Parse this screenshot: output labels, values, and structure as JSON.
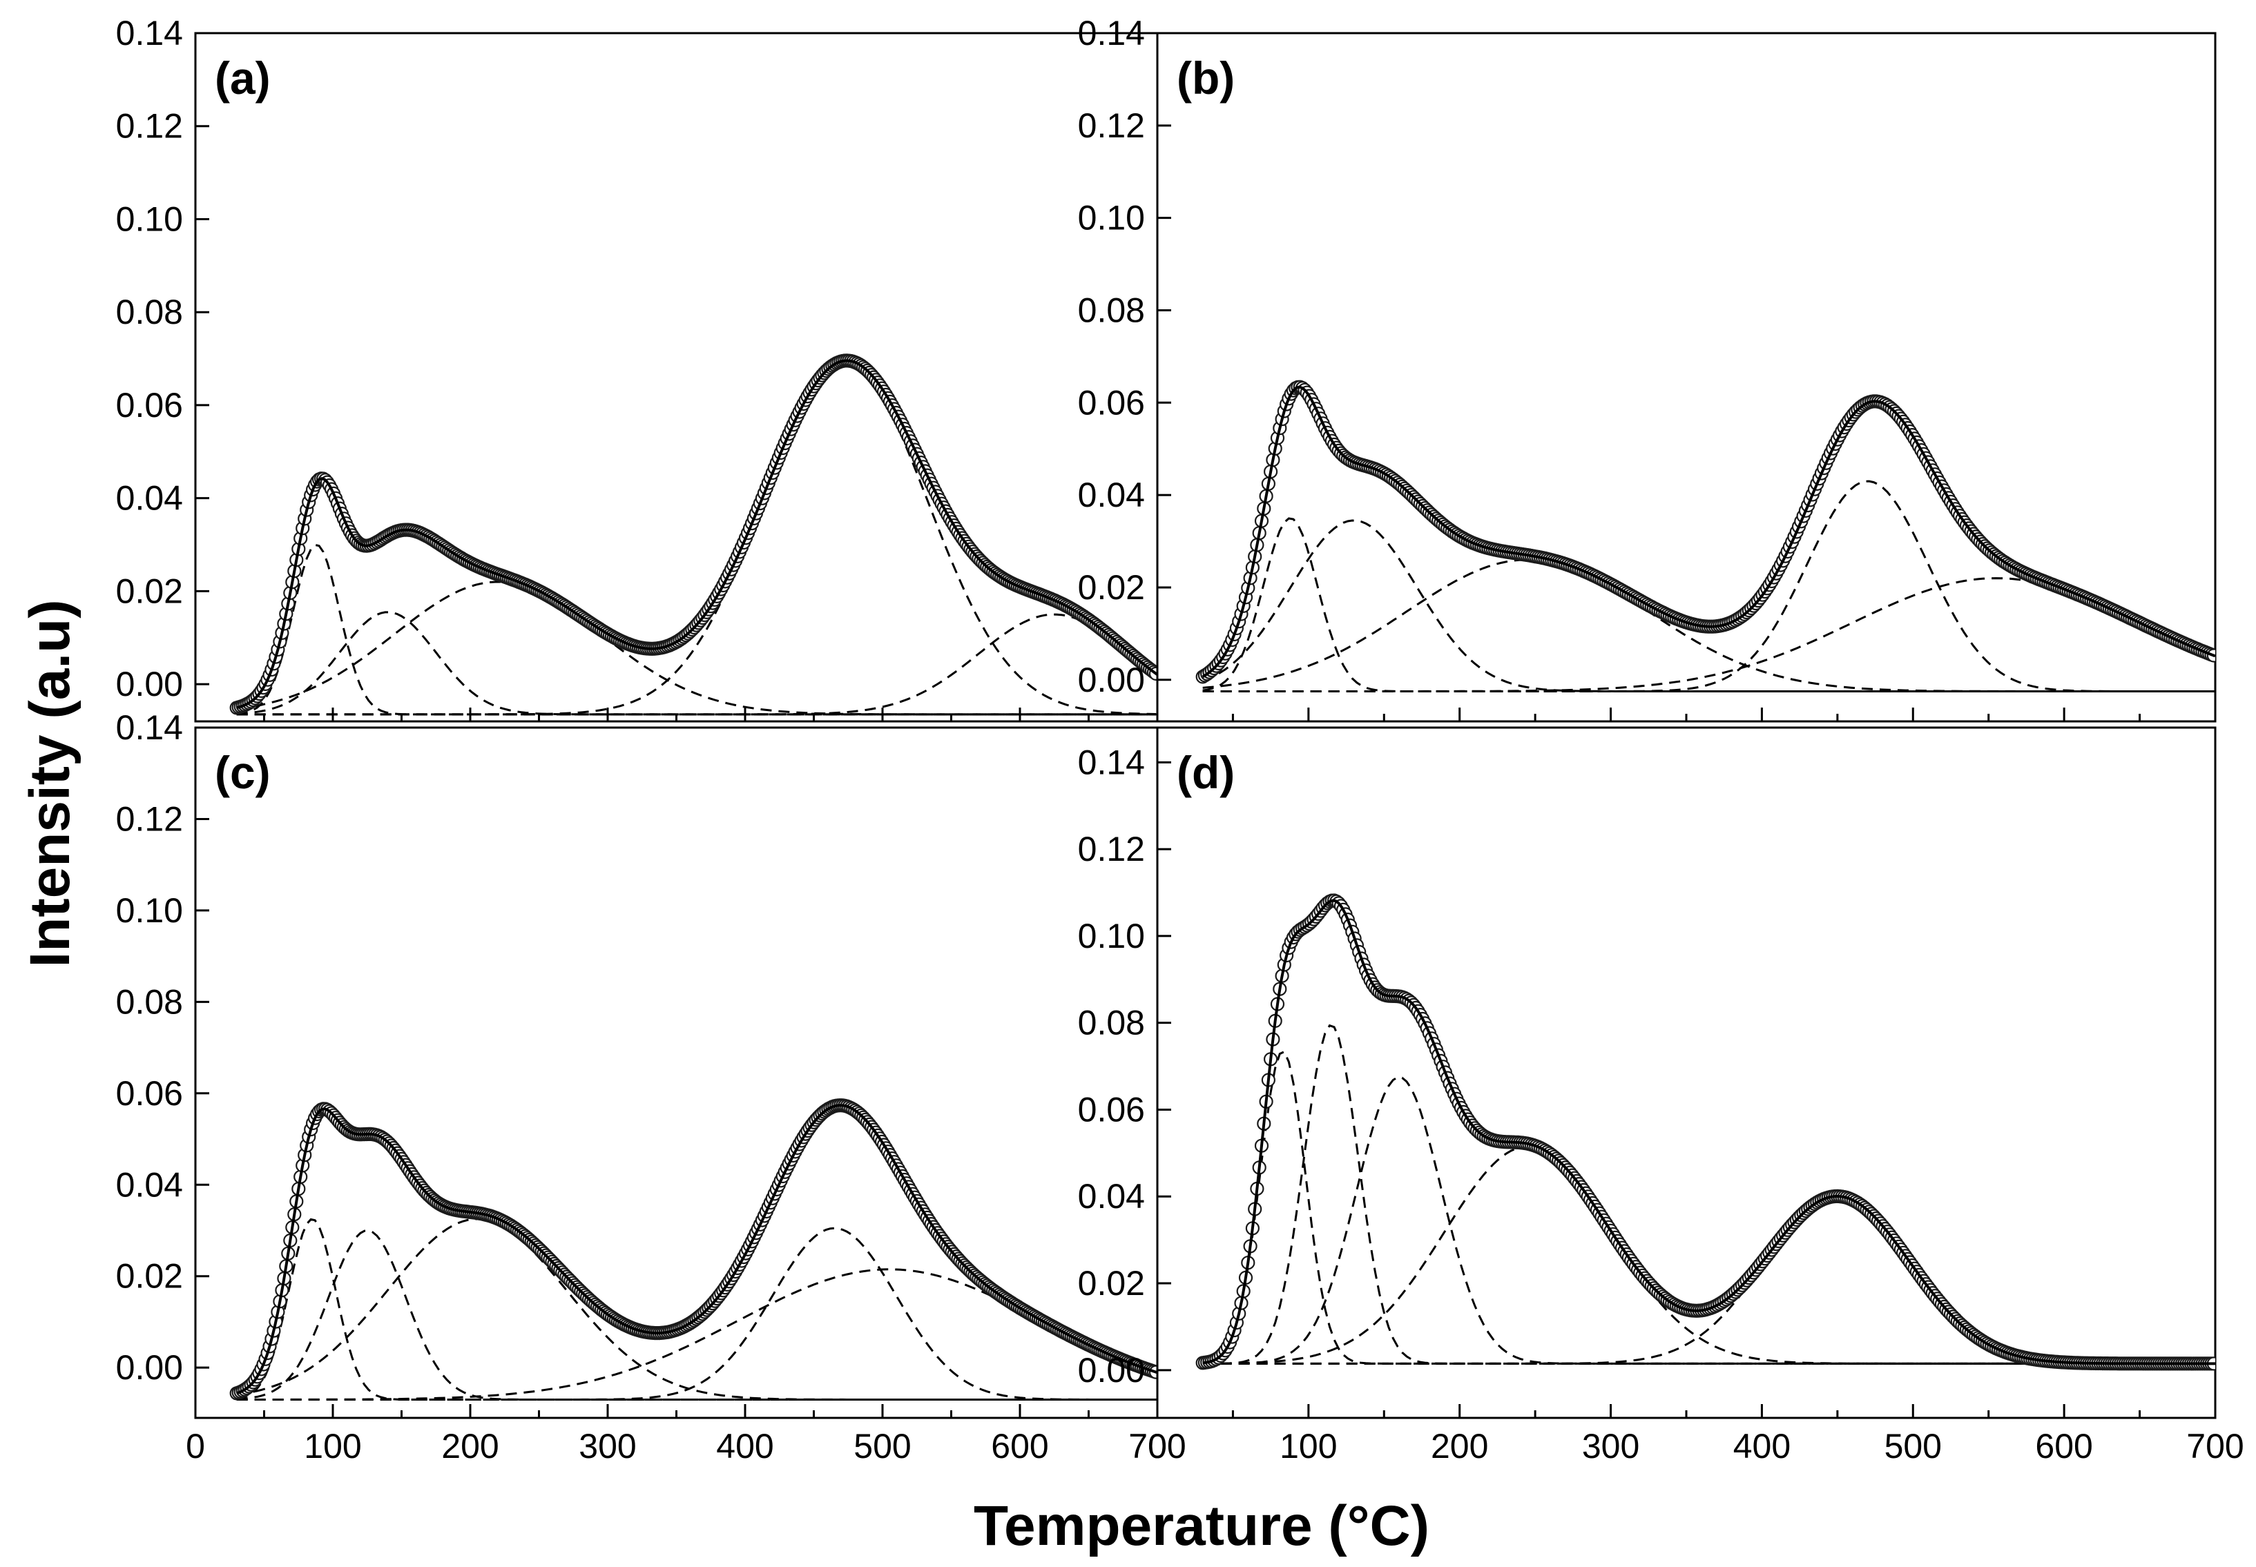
{
  "figure": {
    "xlabel": "Temperature (°C)",
    "ylabel": "Intensity (a.u)"
  },
  "chart_data": [
    {
      "panel": "(a)",
      "type": "line",
      "xlim": [
        0,
        700
      ],
      "ylim": [
        -0.008,
        0.14
      ],
      "xticks": [],
      "xtick_labels": [],
      "yticks": [
        0.0,
        0.02,
        0.04,
        0.06,
        0.08,
        0.1,
        0.12,
        0.14
      ],
      "ytick_labels": [
        "0.00",
        "0.02",
        "0.04",
        "0.06",
        "0.08",
        "0.10",
        "0.12",
        "0.14"
      ],
      "xstart": 30,
      "xend": 700,
      "baseline": -0.0065,
      "peaks": [
        {
          "center": 88,
          "amp": 0.0365,
          "sigma": 17
        },
        {
          "center": 140,
          "amp": 0.022,
          "sigma": 35
        },
        {
          "center": 220,
          "amp": 0.0285,
          "sigma": 75
        },
        {
          "center": 473,
          "amp": 0.0755,
          "sigma": 60
        },
        {
          "center": 625,
          "amp": 0.0215,
          "sigma": 55
        }
      ],
      "series": [
        {
          "name": "experimental",
          "style": "circles"
        },
        {
          "name": "fit",
          "style": "solid"
        },
        {
          "name": "components",
          "style": "dashed"
        }
      ]
    },
    {
      "panel": "(b)",
      "type": "line",
      "xlim": [
        0,
        700
      ],
      "ylim": [
        -0.009,
        0.14
      ],
      "xticks": [],
      "xtick_labels": [],
      "yticks": [
        0.0,
        0.02,
        0.04,
        0.06,
        0.08,
        0.1,
        0.12,
        0.14
      ],
      "ytick_labels": [
        "0.00",
        "0.02",
        "0.04",
        "0.06",
        "0.08",
        "0.10",
        "0.12",
        "0.14"
      ],
      "xstart": 30,
      "xend": 700,
      "baseline": -0.0025,
      "peaks": [
        {
          "center": 88,
          "amp": 0.0375,
          "sigma": 18
        },
        {
          "center": 130,
          "amp": 0.037,
          "sigma": 42
        },
        {
          "center": 245,
          "amp": 0.0285,
          "sigma": 80
        },
        {
          "center": 470,
          "amp": 0.0455,
          "sigma": 40
        },
        {
          "center": 555,
          "amp": 0.0245,
          "sigma": 95
        }
      ],
      "series": [
        {
          "name": "experimental",
          "style": "circles"
        },
        {
          "name": "fit",
          "style": "solid"
        },
        {
          "name": "components",
          "style": "dashed"
        }
      ]
    },
    {
      "panel": "(c)",
      "type": "line",
      "xlim": [
        0,
        700
      ],
      "ylim": [
        -0.011,
        0.14
      ],
      "xticks": [
        0,
        100,
        200,
        300,
        400,
        500,
        600,
        700
      ],
      "xtick_labels": [
        "0",
        "100",
        "200",
        "300",
        "400",
        "500",
        "600",
        "700"
      ],
      "yticks": [
        0.0,
        0.02,
        0.04,
        0.06,
        0.08,
        0.1,
        0.12,
        0.14
      ],
      "ytick_labels": [
        "0.00",
        "0.02",
        "0.04",
        "0.06",
        "0.08",
        "0.10",
        "0.12",
        "0.14"
      ],
      "xstart": 30,
      "xend": 700,
      "baseline": -0.007,
      "peaks": [
        {
          "center": 85,
          "amp": 0.0395,
          "sigma": 17
        },
        {
          "center": 125,
          "amp": 0.037,
          "sigma": 28
        },
        {
          "center": 205,
          "amp": 0.0395,
          "sigma": 65
        },
        {
          "center": 465,
          "amp": 0.0375,
          "sigma": 45
        },
        {
          "center": 505,
          "amp": 0.0285,
          "sigma": 110
        }
      ],
      "series": [
        {
          "name": "experimental",
          "style": "circles"
        },
        {
          "name": "fit",
          "style": "solid"
        },
        {
          "name": "components",
          "style": "dashed"
        }
      ]
    },
    {
      "panel": "(d)",
      "type": "line",
      "xlim": [
        0,
        700
      ],
      "ylim": [
        -0.011,
        0.148
      ],
      "xticks": [
        0,
        100,
        200,
        300,
        400,
        500,
        600,
        700
      ],
      "xtick_labels": [
        "0",
        "100",
        "200",
        "300",
        "400",
        "500",
        "600",
        "700"
      ],
      "yticks": [
        0.0,
        0.02,
        0.04,
        0.06,
        0.08,
        0.1,
        0.12,
        0.14
      ],
      "ytick_labels": [
        "0.00",
        "0.02",
        "0.04",
        "0.06",
        "0.08",
        "0.10",
        "0.12",
        "0.14"
      ],
      "xstart": 30,
      "xend": 700,
      "baseline": 0.0015,
      "peaks": [
        {
          "center": 83,
          "amp": 0.072,
          "sigma": 15
        },
        {
          "center": 115,
          "amp": 0.078,
          "sigma": 18
        },
        {
          "center": 160,
          "amp": 0.066,
          "sigma": 28
        },
        {
          "center": 245,
          "amp": 0.05,
          "sigma": 55
        },
        {
          "center": 450,
          "amp": 0.0385,
          "sigma": 48
        }
      ],
      "series": [
        {
          "name": "experimental",
          "style": "circles"
        },
        {
          "name": "fit",
          "style": "solid"
        },
        {
          "name": "components",
          "style": "dashed"
        }
      ]
    }
  ]
}
